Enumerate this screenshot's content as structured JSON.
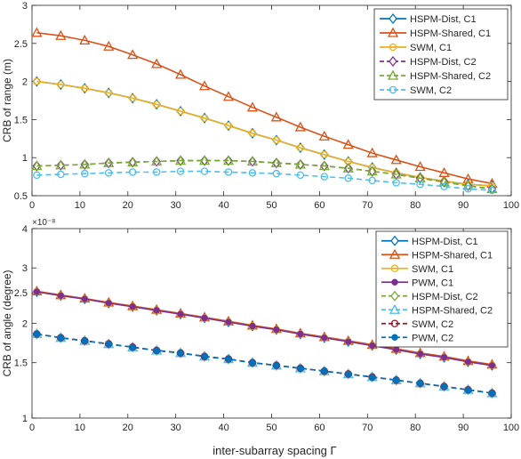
{
  "figure": {
    "xlabel": "inter-subarray spacing Γ",
    "xticks": [
      "0",
      "10",
      "20",
      "30",
      "40",
      "50",
      "60",
      "70",
      "80",
      "90",
      "100"
    ]
  },
  "chart_data": [
    {
      "type": "line",
      "title": "",
      "xlabel": "inter-subarray spacing Γ",
      "ylabel": "CRB of range (m)",
      "xlim": [
        0,
        100
      ],
      "ylim": [
        0.5,
        3
      ],
      "yticks": [
        "0.5",
        "1",
        "1.5",
        "2",
        "2.5",
        "3"
      ],
      "grid": false,
      "legend": "top-right",
      "x": [
        1,
        6,
        11,
        16,
        21,
        26,
        31,
        36,
        41,
        46,
        51,
        56,
        61,
        66,
        71,
        76,
        81,
        86,
        91,
        96
      ],
      "series": [
        {
          "name": "HSPM-Dist, C1",
          "color": "#0072BD",
          "dash": "solid",
          "marker": "diamond",
          "values": [
            2.0,
            1.96,
            1.91,
            1.85,
            1.78,
            1.7,
            1.61,
            1.52,
            1.42,
            1.32,
            1.23,
            1.13,
            1.04,
            0.95,
            0.87,
            0.8,
            0.74,
            0.69,
            0.65,
            0.63
          ]
        },
        {
          "name": "HSPM-Shared, C1",
          "color": "#D95319",
          "dash": "solid",
          "marker": "triangle",
          "values": [
            2.64,
            2.6,
            2.54,
            2.46,
            2.35,
            2.23,
            2.09,
            1.94,
            1.8,
            1.66,
            1.53,
            1.4,
            1.28,
            1.17,
            1.06,
            0.97,
            0.88,
            0.8,
            0.72,
            0.66
          ]
        },
        {
          "name": "SWM, C1",
          "color": "#EDB120",
          "dash": "solid",
          "marker": "circle",
          "values": [
            2.0,
            1.96,
            1.91,
            1.85,
            1.78,
            1.7,
            1.61,
            1.52,
            1.42,
            1.32,
            1.23,
            1.13,
            1.04,
            0.95,
            0.87,
            0.8,
            0.74,
            0.69,
            0.65,
            0.63
          ]
        },
        {
          "name": "HSPM-Dist, C2",
          "color": "#7E2F8E",
          "dash": "dashed",
          "marker": "diamond",
          "values": [
            0.89,
            0.9,
            0.91,
            0.93,
            0.94,
            0.95,
            0.96,
            0.96,
            0.96,
            0.95,
            0.93,
            0.91,
            0.89,
            0.86,
            0.82,
            0.78,
            0.73,
            0.68,
            0.63,
            0.59
          ]
        },
        {
          "name": "HSPM-Shared, C2",
          "color": "#77AC30",
          "dash": "dashed",
          "marker": "triangle",
          "values": [
            0.89,
            0.9,
            0.91,
            0.93,
            0.94,
            0.95,
            0.96,
            0.96,
            0.96,
            0.95,
            0.93,
            0.91,
            0.89,
            0.86,
            0.82,
            0.78,
            0.73,
            0.68,
            0.63,
            0.59
          ]
        },
        {
          "name": "SWM, C2",
          "color": "#4DBEEE",
          "dash": "dashed",
          "marker": "circle",
          "values": [
            0.77,
            0.78,
            0.79,
            0.8,
            0.81,
            0.81,
            0.82,
            0.82,
            0.81,
            0.8,
            0.79,
            0.77,
            0.75,
            0.73,
            0.7,
            0.67,
            0.65,
            0.62,
            0.59,
            0.57
          ]
        }
      ]
    },
    {
      "type": "line",
      "title": "",
      "xlabel": "inter-subarray spacing Γ",
      "ylabel": "CRB of angle (degree)",
      "yscale": "log",
      "yexponent": "×10⁻⁸",
      "xlim": [
        0,
        100
      ],
      "ylim": [
        1,
        4
      ],
      "yticks": [
        "1",
        "1.5",
        "2",
        "2.5",
        "3",
        "4"
      ],
      "grid": false,
      "legend": "top-right",
      "x": [
        1,
        6,
        11,
        16,
        21,
        26,
        31,
        36,
        41,
        46,
        51,
        56,
        61,
        66,
        71,
        76,
        81,
        86,
        91,
        96
      ],
      "series": [
        {
          "name": "HSPM-Dist, C1",
          "color": "#0072BD",
          "dash": "solid",
          "marker": "diamond",
          "values": [
            2.52,
            2.45,
            2.39,
            2.32,
            2.26,
            2.2,
            2.14,
            2.08,
            2.02,
            1.96,
            1.91,
            1.85,
            1.8,
            1.75,
            1.7,
            1.65,
            1.6,
            1.56,
            1.51,
            1.47
          ]
        },
        {
          "name": "HSPM-Shared, C1",
          "color": "#D95319",
          "dash": "solid",
          "marker": "triangle",
          "values": [
            2.53,
            2.46,
            2.4,
            2.33,
            2.27,
            2.21,
            2.15,
            2.09,
            2.03,
            1.97,
            1.92,
            1.86,
            1.81,
            1.76,
            1.71,
            1.66,
            1.61,
            1.57,
            1.52,
            1.48
          ]
        },
        {
          "name": "SWM, C1",
          "color": "#EDB120",
          "dash": "solid",
          "marker": "circle",
          "values": [
            2.52,
            2.45,
            2.39,
            2.32,
            2.26,
            2.2,
            2.14,
            2.08,
            2.02,
            1.96,
            1.91,
            1.85,
            1.8,
            1.75,
            1.7,
            1.65,
            1.6,
            1.56,
            1.51,
            1.47
          ]
        },
        {
          "name": "PWM, C1",
          "color": "#7E2F8E",
          "dash": "solid",
          "marker": "dot",
          "values": [
            2.52,
            2.45,
            2.39,
            2.32,
            2.26,
            2.2,
            2.14,
            2.08,
            2.02,
            1.96,
            1.91,
            1.85,
            1.8,
            1.75,
            1.7,
            1.65,
            1.6,
            1.56,
            1.51,
            1.47
          ]
        },
        {
          "name": "HSPM-Dist, C2",
          "color": "#77AC30",
          "dash": "dashed",
          "marker": "diamond",
          "values": [
            1.85,
            1.8,
            1.76,
            1.72,
            1.68,
            1.64,
            1.61,
            1.57,
            1.54,
            1.5,
            1.47,
            1.44,
            1.41,
            1.38,
            1.35,
            1.32,
            1.29,
            1.26,
            1.23,
            1.2
          ]
        },
        {
          "name": "HSPM-Shared, C2",
          "color": "#4DBEEE",
          "dash": "dashed",
          "marker": "triangle",
          "values": [
            1.85,
            1.8,
            1.76,
            1.72,
            1.68,
            1.64,
            1.61,
            1.57,
            1.54,
            1.5,
            1.47,
            1.44,
            1.41,
            1.38,
            1.35,
            1.32,
            1.29,
            1.26,
            1.23,
            1.2
          ]
        },
        {
          "name": "SWM, C2",
          "color": "#A2142F",
          "dash": "dashed",
          "marker": "circle",
          "values": [
            1.85,
            1.8,
            1.76,
            1.72,
            1.68,
            1.64,
            1.61,
            1.57,
            1.54,
            1.5,
            1.47,
            1.44,
            1.41,
            1.38,
            1.35,
            1.32,
            1.29,
            1.26,
            1.23,
            1.2
          ]
        },
        {
          "name": "PWM, C2",
          "color": "#0072BD",
          "dash": "dashed",
          "marker": "dot",
          "values": [
            1.85,
            1.8,
            1.76,
            1.72,
            1.68,
            1.64,
            1.61,
            1.57,
            1.54,
            1.5,
            1.47,
            1.44,
            1.41,
            1.38,
            1.35,
            1.32,
            1.29,
            1.26,
            1.23,
            1.2
          ]
        }
      ]
    }
  ]
}
